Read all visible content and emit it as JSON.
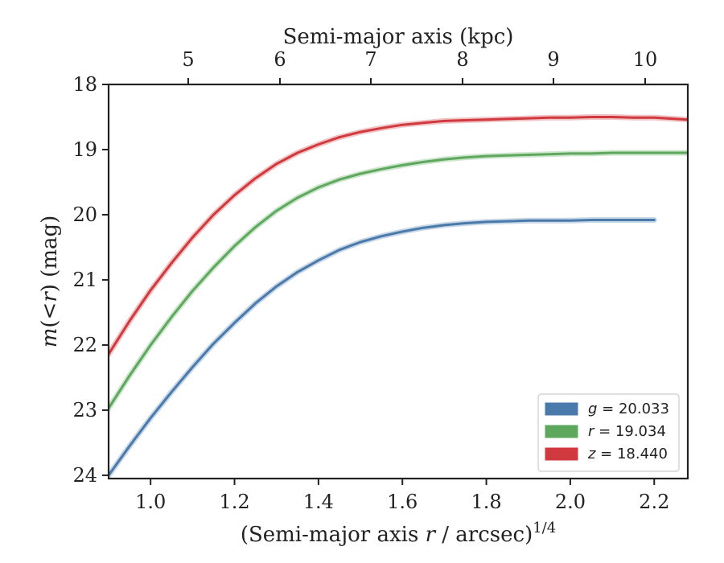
{
  "chart_data": {
    "type": "line",
    "title": "",
    "xlabel": "(Semi-major axis r / arcsec)^1/4",
    "xlabel_parts": {
      "open": "(Semi-major axis ",
      "var": "r",
      "mid": " / arcsec)",
      "sup": "1/4"
    },
    "ylabel": "m(<r) (mag)",
    "ylabel_parts": {
      "var_m": "m",
      "inner": "(<",
      "var_r": "r",
      "close": ")",
      "unit": " (mag)"
    },
    "top_xlabel": "Semi-major axis (kpc)",
    "xlim": [
      0.9,
      2.28
    ],
    "ylim": [
      24.05,
      18.0
    ],
    "y_inverted": true,
    "x_ticks": [
      1.0,
      1.2,
      1.4,
      1.6,
      1.8,
      2.0,
      2.2
    ],
    "x_tick_labels": [
      "1.0",
      "1.2",
      "1.4",
      "1.6",
      "1.8",
      "2.0",
      "2.2"
    ],
    "y_ticks": [
      18,
      19,
      20,
      21,
      22,
      23,
      24
    ],
    "y_tick_labels": [
      "18",
      "19",
      "20",
      "21",
      "22",
      "23",
      "24"
    ],
    "top_x_ticks": [
      4.98,
      5.98,
      6.97,
      7.98,
      8.97,
      9.98
    ],
    "top_x_tick_labels": [
      "5",
      "6",
      "7",
      "8",
      "9",
      "10"
    ],
    "legend_position": "lower right",
    "grid": false,
    "series": [
      {
        "name": "g = 20.033",
        "legend_var": "g",
        "legend_value": "= 20.033",
        "color": "#4a7aab",
        "x": [
          0.9,
          0.95,
          1.0,
          1.05,
          1.1,
          1.15,
          1.2,
          1.25,
          1.3,
          1.35,
          1.4,
          1.45,
          1.5,
          1.55,
          1.6,
          1.65,
          1.7,
          1.75,
          1.8,
          1.85,
          1.9,
          1.95,
          2.0,
          2.05,
          2.1,
          2.15,
          2.2
        ],
        "y": [
          24.0,
          23.55,
          23.12,
          22.72,
          22.34,
          21.98,
          21.66,
          21.36,
          21.1,
          20.88,
          20.7,
          20.54,
          20.42,
          20.33,
          20.26,
          20.2,
          20.16,
          20.13,
          20.11,
          20.1,
          20.09,
          20.09,
          20.09,
          20.08,
          20.08,
          20.08,
          20.08
        ]
      },
      {
        "name": "r = 19.034",
        "legend_var": "r",
        "legend_value": "= 19.034",
        "color": "#5ea85e",
        "x": [
          0.9,
          0.95,
          1.0,
          1.05,
          1.1,
          1.15,
          1.2,
          1.25,
          1.3,
          1.35,
          1.4,
          1.45,
          1.5,
          1.55,
          1.6,
          1.65,
          1.7,
          1.75,
          1.8,
          1.85,
          1.9,
          1.95,
          2.0,
          2.05,
          2.1,
          2.15,
          2.2,
          2.28
        ],
        "y": [
          22.97,
          22.47,
          22.0,
          21.57,
          21.17,
          20.81,
          20.48,
          20.19,
          19.94,
          19.74,
          19.58,
          19.46,
          19.37,
          19.3,
          19.24,
          19.19,
          19.15,
          19.12,
          19.1,
          19.09,
          19.08,
          19.07,
          19.06,
          19.06,
          19.05,
          19.05,
          19.05,
          19.05
        ]
      },
      {
        "name": "z = 18.440",
        "legend_var": "z",
        "legend_value": "= 18.440",
        "color": "#d0393e",
        "x": [
          0.9,
          0.95,
          1.0,
          1.05,
          1.1,
          1.15,
          1.2,
          1.25,
          1.3,
          1.35,
          1.4,
          1.45,
          1.5,
          1.55,
          1.6,
          1.65,
          1.7,
          1.75,
          1.8,
          1.85,
          1.9,
          1.95,
          2.0,
          2.05,
          2.1,
          2.15,
          2.2,
          2.28
        ],
        "y": [
          22.14,
          21.63,
          21.16,
          20.74,
          20.35,
          20.0,
          19.7,
          19.44,
          19.22,
          19.05,
          18.92,
          18.81,
          18.73,
          18.67,
          18.62,
          18.59,
          18.56,
          18.55,
          18.54,
          18.53,
          18.52,
          18.51,
          18.51,
          18.5,
          18.5,
          18.51,
          18.51,
          18.54
        ]
      }
    ]
  }
}
